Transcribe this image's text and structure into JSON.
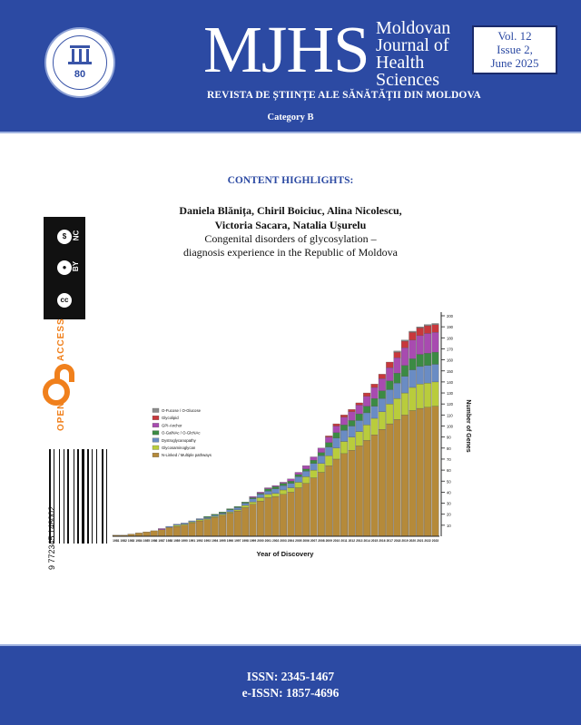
{
  "header": {
    "acronym": "MJHS",
    "journal_name_lines": [
      "Moldovan",
      "Journal of",
      "Health",
      "Sciences"
    ],
    "subtitle": "REVISTA DE ȘTIINȚE ALE SĂNĂTĂȚII DIN MOLDOVA",
    "category": "Category B",
    "volume": "Vol. 12",
    "issue": "Issue 2,",
    "date": "June 2025"
  },
  "seal": {
    "number": "80"
  },
  "content": {
    "section_title": "CONTENT HIGHLIGHTS:",
    "authors_line1": "Daniela Blănița, Chiril Boiciuc, Alina Nicolescu,",
    "authors_line2": "Victoria Sacara, Natalia Ușurelu",
    "title_line1": "Congenital disorders of glycosylation –",
    "title_line2": "diagnosis experience in the Republic of Moldova"
  },
  "license": {
    "cc": "cc",
    "by": "BY",
    "nc": "NC"
  },
  "open_access": {
    "open": "OPEN",
    "access": "ACCESS"
  },
  "barcode": {
    "number": "9 772345 146002"
  },
  "chart_data": {
    "type": "bar",
    "xlabel": "Year of Discovery",
    "ylabel": "Number of Genes",
    "ylim": [
      0,
      200
    ],
    "yticks": [
      10,
      20,
      30,
      40,
      50,
      60,
      70,
      80,
      90,
      100,
      110,
      120,
      130,
      140,
      150,
      160,
      170,
      180,
      190,
      200
    ],
    "categories": [
      "1981",
      "1982",
      "1983",
      "1984",
      "1985",
      "1986",
      "1987",
      "1988",
      "1989",
      "1990",
      "1991",
      "1992",
      "1993",
      "1994",
      "1995",
      "1996",
      "1997",
      "1998",
      "1999",
      "2000",
      "2001",
      "2002",
      "2003",
      "2004",
      "2005",
      "2006",
      "2007",
      "2008",
      "2009",
      "2010",
      "2011",
      "2012",
      "2013",
      "2014",
      "2015",
      "2016",
      "2017",
      "2018",
      "2019",
      "2020",
      "2021",
      "2022",
      "2023"
    ],
    "legend": [
      "O-Fucose / O-Glucose",
      "Glycolipid",
      "GPI-Anchor",
      "O-GalNAc / O-GlcNAc",
      "Dystroglycanopathy",
      "Glycosaminoglycan",
      "N-Linked / Multiple pathways"
    ],
    "colors": [
      "#8c8c8c",
      "#c8383c",
      "#a84bb0",
      "#3c8a44",
      "#6a8cc4",
      "#b9cc3c",
      "#b58a3a"
    ],
    "totals": [
      1,
      1,
      2,
      3,
      4,
      5,
      7,
      9,
      11,
      12,
      14,
      16,
      18,
      20,
      22,
      25,
      27,
      31,
      36,
      40,
      44,
      46,
      49,
      52,
      58,
      64,
      72,
      80,
      91,
      102,
      110,
      115,
      121,
      130,
      138,
      147,
      158,
      168,
      178,
      186,
      190,
      192,
      193
    ],
    "series": [
      {
        "name": "N-Linked / Multiple pathways",
        "values": [
          1,
          1,
          2,
          3,
          4,
          5,
          6,
          8,
          9,
          10,
          12,
          14,
          15,
          17,
          19,
          21,
          23,
          26,
          29,
          32,
          35,
          36,
          38,
          40,
          44,
          48,
          53,
          58,
          64,
          70,
          75,
          78,
          82,
          87,
          92,
          97,
          102,
          106,
          110,
          114,
          116,
          117,
          118
        ]
      },
      {
        "name": "Glycosaminoglycan",
        "values": [
          0,
          0,
          0,
          0,
          0,
          0,
          0,
          0,
          1,
          1,
          1,
          1,
          1,
          1,
          1,
          1,
          1,
          2,
          2,
          3,
          3,
          3,
          4,
          4,
          5,
          6,
          7,
          8,
          9,
          10,
          11,
          12,
          13,
          14,
          15,
          16,
          18,
          19,
          20,
          21,
          22,
          22,
          22
        ]
      },
      {
        "name": "Dystroglycanopathy",
        "values": [
          0,
          0,
          0,
          0,
          0,
          0,
          0,
          1,
          1,
          1,
          1,
          1,
          1,
          1,
          1,
          2,
          2,
          2,
          3,
          3,
          3,
          4,
          4,
          4,
          5,
          5,
          6,
          7,
          8,
          9,
          10,
          10,
          10,
          11,
          11,
          12,
          13,
          14,
          15,
          16,
          16,
          16,
          16
        ]
      },
      {
        "name": "O-GalNAc / O-GlcNAc",
        "values": [
          0,
          0,
          0,
          0,
          0,
          0,
          0,
          0,
          0,
          0,
          0,
          0,
          1,
          1,
          1,
          1,
          1,
          1,
          1,
          1,
          2,
          2,
          2,
          2,
          2,
          2,
          3,
          3,
          4,
          5,
          5,
          5,
          6,
          6,
          7,
          7,
          8,
          9,
          10,
          10,
          11,
          11,
          11
        ]
      },
      {
        "name": "GPI-Anchor",
        "values": [
          0,
          0,
          0,
          0,
          0,
          0,
          1,
          0,
          0,
          0,
          0,
          0,
          0,
          0,
          0,
          0,
          0,
          0,
          1,
          1,
          1,
          1,
          1,
          2,
          2,
          3,
          3,
          4,
          5,
          6,
          7,
          8,
          8,
          9,
          10,
          11,
          12,
          14,
          16,
          17,
          17,
          18,
          18
        ]
      },
      {
        "name": "Glycolipid",
        "values": [
          0,
          0,
          0,
          0,
          0,
          0,
          0,
          0,
          0,
          0,
          0,
          0,
          0,
          0,
          0,
          0,
          0,
          0,
          0,
          0,
          0,
          0,
          0,
          0,
          0,
          0,
          0,
          0,
          1,
          2,
          2,
          2,
          2,
          3,
          3,
          4,
          5,
          5,
          6,
          7,
          7,
          7,
          7
        ]
      },
      {
        "name": "O-Fucose / O-Glucose",
        "values": [
          0,
          0,
          0,
          0,
          0,
          0,
          0,
          0,
          0,
          0,
          0,
          0,
          0,
          0,
          0,
          0,
          0,
          0,
          0,
          0,
          0,
          0,
          0,
          0,
          0,
          0,
          0,
          0,
          0,
          0,
          0,
          0,
          0,
          0,
          0,
          0,
          0,
          1,
          1,
          1,
          1,
          1,
          1
        ]
      }
    ]
  },
  "footer": {
    "issn": "ISSN: 2345-1467",
    "eissn": "e-ISSN: 1857-4696"
  }
}
